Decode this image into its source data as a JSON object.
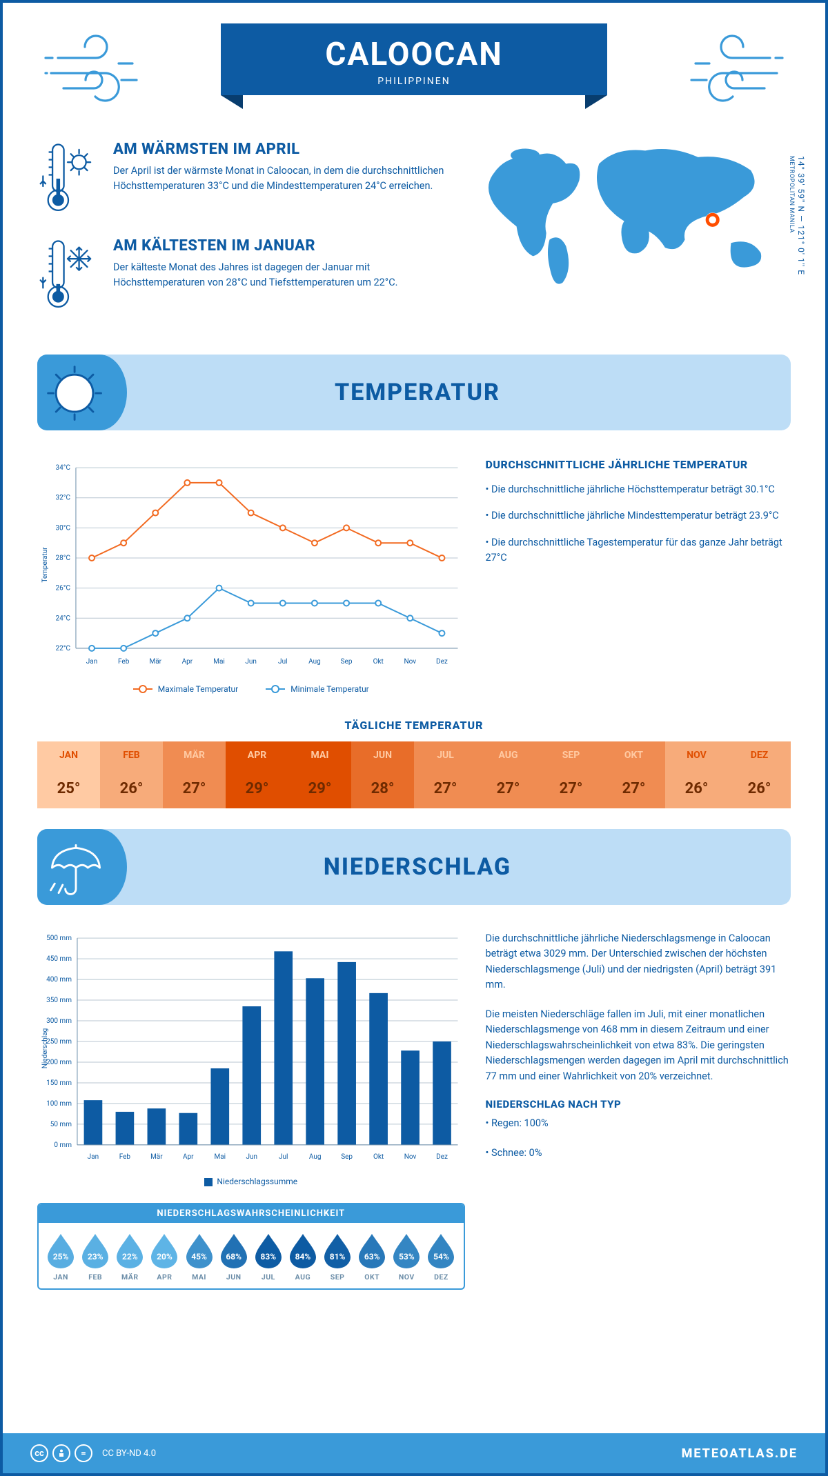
{
  "header": {
    "city": "CALOOCAN",
    "country": "PHILIPPINEN",
    "coords": "14° 39' 59'' N — 121° 0' 1'' E",
    "region": "METROPOLITAN MANILA"
  },
  "colors": {
    "primary": "#0d5ba3",
    "light_blue": "#bdddf6",
    "mid_blue": "#3a9ad9",
    "orange": "#f26a21",
    "orange_light": "#ffcaa3",
    "orange_mid": "#ff8c3f",
    "orange_dark": "#e04e00",
    "map_fill": "#3a9ad9",
    "map_marker": "#ff4e00"
  },
  "facts": {
    "warm": {
      "title": "AM WÄRMSTEN IM APRIL",
      "text": "Der April ist der wärmste Monat in Caloocan, in dem die durchschnittlichen Höchsttemperaturen 33°C und die Mindesttemperaturen 24°C erreichen."
    },
    "cold": {
      "title": "AM KÄLTESTEN IM JANUAR",
      "text": "Der kälteste Monat des Jahres ist dagegen der Januar mit Höchsttemperaturen von 28°C und Tiefsttemperaturen um 22°C."
    }
  },
  "sections": {
    "temp_title": "TEMPERATUR",
    "precip_title": "NIEDERSCHLAG"
  },
  "months": [
    "Jan",
    "Feb",
    "Mär",
    "Apr",
    "Mai",
    "Jun",
    "Jul",
    "Aug",
    "Sep",
    "Okt",
    "Nov",
    "Dez"
  ],
  "months_upper": [
    "JAN",
    "FEB",
    "MÄR",
    "APR",
    "MAI",
    "JUN",
    "JUL",
    "AUG",
    "SEP",
    "OKT",
    "NOV",
    "DEZ"
  ],
  "temp_chart": {
    "type": "line",
    "y_label": "Temperatur",
    "y_ticks": [
      "22°C",
      "24°C",
      "26°C",
      "28°C",
      "30°C",
      "32°C",
      "34°C"
    ],
    "y_values": [
      22,
      24,
      26,
      28,
      30,
      32,
      34
    ],
    "ylim": [
      22,
      34
    ],
    "x_labels": [
      "Jan",
      "Feb",
      "Mär",
      "Apr",
      "Mai",
      "Jun",
      "Jul",
      "Aug",
      "Sep",
      "Okt",
      "Nov",
      "Dez"
    ],
    "max_series": [
      28,
      29,
      31,
      33,
      33,
      31,
      30,
      29,
      30,
      29,
      29,
      28
    ],
    "min_series": [
      22,
      22,
      23,
      24,
      26,
      25,
      25,
      25,
      25,
      25,
      24,
      23
    ],
    "max_label": "Maximale Temperatur",
    "min_label": "Minimale Temperatur",
    "max_color": "#f26a21",
    "min_color": "#3a9ad9",
    "grid_color": "#b8c6d1",
    "line_width": 2,
    "marker_radius": 4
  },
  "temp_text": {
    "heading": "DURCHSCHNITTLICHE JÄHRLICHE TEMPERATUR",
    "bullets": [
      "• Die durchschnittliche jährliche Höchsttemperatur beträgt 30.1°C",
      "• Die durchschnittliche jährliche Mindesttemperatur beträgt 23.9°C",
      "• Die durchschnittliche Tagestemperatur für das ganze Jahr beträgt 27°C"
    ]
  },
  "daily_temp": {
    "title": "TÄGLICHE TEMPERATUR",
    "values": [
      "25°",
      "26°",
      "27°",
      "29°",
      "29°",
      "28°",
      "27°",
      "27°",
      "27°",
      "27°",
      "26°",
      "26°"
    ],
    "min": 25,
    "max": 29
  },
  "precip_chart": {
    "type": "bar",
    "y_label": "Niederschlag",
    "y_ticks": [
      "0 mm",
      "50 mm",
      "100 mm",
      "150 mm",
      "200 mm",
      "250 mm",
      "300 mm",
      "350 mm",
      "400 mm",
      "450 mm",
      "500 mm"
    ],
    "y_values": [
      0,
      50,
      100,
      150,
      200,
      250,
      300,
      350,
      400,
      450,
      500
    ],
    "ylim": [
      0,
      500
    ],
    "x_labels": [
      "Jan",
      "Feb",
      "Mär",
      "Apr",
      "Mai",
      "Jun",
      "Jul",
      "Aug",
      "Sep",
      "Okt",
      "Nov",
      "Dez"
    ],
    "values": [
      108,
      80,
      88,
      77,
      185,
      335,
      468,
      403,
      442,
      367,
      228,
      250
    ],
    "bar_color": "#0d5ba3",
    "grid_color": "#b8c6d1",
    "legend": "Niederschlagssumme"
  },
  "precip_text": {
    "p1": "Die durchschnittliche jährliche Niederschlagsmenge in Caloocan beträgt etwa 3029 mm. Der Unterschied zwischen der höchsten Niederschlagsmenge (Juli) und der niedrigsten (April) beträgt 391 mm.",
    "p2": "Die meisten Niederschläge fallen im Juli, mit einer monatlichen Niederschlagsmenge von 468 mm in diesem Zeitraum und einer Niederschlagswahrscheinlichkeit von etwa 83%. Die geringsten Niederschlagsmengen werden dagegen im April mit durchschnittlich 77 mm und einer Wahrlichkeit von 20% verzeichnet.",
    "type_heading": "NIEDERSCHLAG NACH TYP",
    "type_lines": [
      "• Regen: 100%",
      "• Schnee: 0%"
    ]
  },
  "precip_prob": {
    "title": "NIEDERSCHLAGSWAHRSCHEINLICHKEIT",
    "values": [
      25,
      23,
      22,
      20,
      45,
      68,
      83,
      84,
      81,
      63,
      53,
      54
    ],
    "min": 20,
    "max": 84,
    "color_light": "#5eb4e6",
    "color_dark": "#0d5ba3"
  },
  "footer": {
    "license": "CC BY-ND 4.0",
    "brand": "METEOATLAS.DE"
  }
}
